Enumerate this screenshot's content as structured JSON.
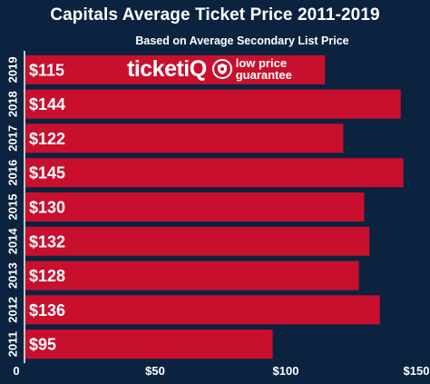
{
  "chart_data": {
    "type": "bar",
    "orientation": "horizontal",
    "title": "Capitals Average Ticket Price 2011-2019",
    "subtitle": "Based on Average Secondary List Price",
    "categories": [
      "2019",
      "2018",
      "2017",
      "2016",
      "2015",
      "2014",
      "2013",
      "2012",
      "2011"
    ],
    "values": [
      115,
      144,
      122,
      145,
      130,
      132,
      128,
      136,
      95
    ],
    "value_labels": [
      "$115",
      "$144",
      "$122",
      "$145",
      "$130",
      "$132",
      "$128",
      "$136",
      "$95"
    ],
    "x_ticks": [
      {
        "value": 0,
        "label": "0"
      },
      {
        "value": 50,
        "label": "$50"
      },
      {
        "value": 100,
        "label": "$100"
      },
      {
        "value": 150,
        "label": "$150"
      }
    ],
    "xlim": [
      0,
      150
    ],
    "grid": false,
    "bar_color": "#c8102e",
    "background_color": "#0c2340"
  },
  "logo": {
    "brand": "ticketiQ",
    "tagline_line1": "low price",
    "tagline_line2": "guarantee"
  }
}
